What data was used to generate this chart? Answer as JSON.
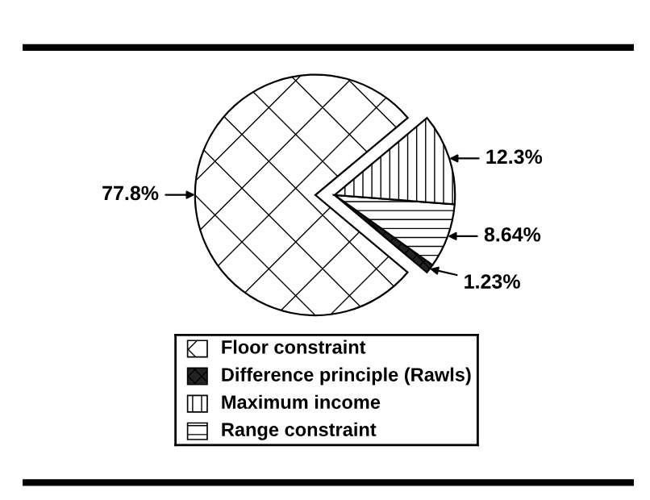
{
  "chart_data": {
    "type": "pie",
    "categories": [
      "Floor constraint",
      "Difference principle (Rawls)",
      "Maximum income",
      "Range constraint"
    ],
    "values": [
      77.8,
      1.23,
      12.3,
      8.64
    ],
    "colors": [
      "#ffffff",
      "#222222",
      "#ffffff",
      "#ffffff"
    ],
    "value_labels": [
      "77.8%",
      "1.23%",
      "12.3%",
      "8.64%"
    ],
    "legend": "bottom"
  }
}
